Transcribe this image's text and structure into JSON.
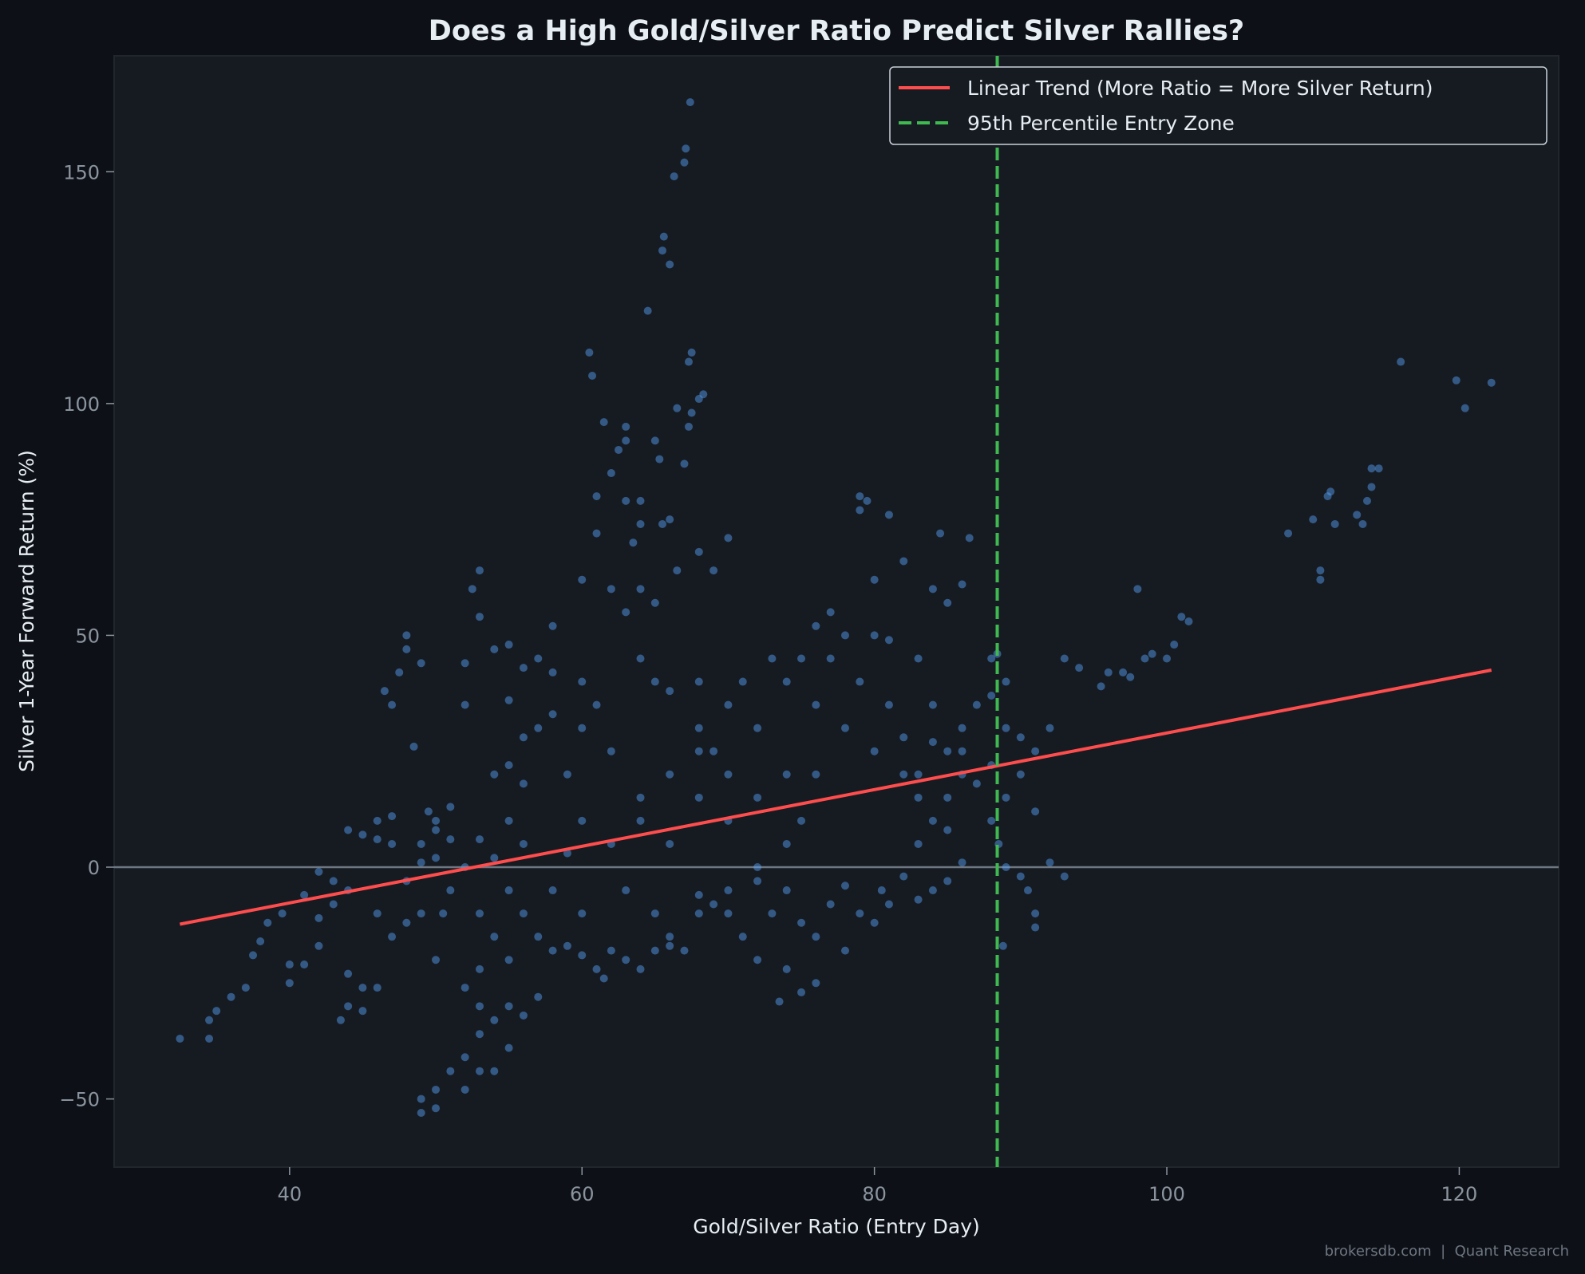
{
  "chart_data": {
    "type": "scatter",
    "title": "Does a High Gold/Silver Ratio Predict Silver Rallies?",
    "xlabel": "Gold/Silver Ratio (Entry Day)",
    "ylabel": "Silver 1-Year Forward Return (%)",
    "xlim": [
      28,
      126.8
    ],
    "ylim": [
      -64.7,
      175
    ],
    "xticks": [
      40,
      60,
      80,
      100,
      120
    ],
    "yticks": [
      -50,
      0,
      50,
      100,
      150
    ],
    "ytick_labels": [
      "−50",
      "0",
      "50",
      "100",
      "150"
    ],
    "grid": false,
    "legend_position": "top-right",
    "colors": {
      "background": "#0d1117",
      "axes": "#161b22",
      "points": "#58a6ff",
      "trend": "#ff4d4d",
      "threshold": "#3fb950",
      "zero_line": "#6e7681"
    },
    "trend_line": {
      "name": "Linear Trend (More Ratio = More Silver Return)",
      "x": [
        32.5,
        122.2
      ],
      "y": [
        -12.3,
        42.5
      ]
    },
    "threshold_line": {
      "name": "95th Percentile Entry Zone",
      "x": 88.4
    },
    "zero_line": 0,
    "points": [
      [
        32.5,
        -37
      ],
      [
        34.5,
        -37
      ],
      [
        34.5,
        -33
      ],
      [
        35,
        -31
      ],
      [
        36,
        -28
      ],
      [
        37,
        -26
      ],
      [
        37.5,
        -19
      ],
      [
        38,
        -16
      ],
      [
        38.5,
        -12
      ],
      [
        39.5,
        -10
      ],
      [
        40,
        -25
      ],
      [
        40,
        -21
      ],
      [
        41,
        -21
      ],
      [
        42,
        -17
      ],
      [
        42,
        -1
      ],
      [
        43,
        -3
      ],
      [
        43,
        -8
      ],
      [
        44,
        -5
      ],
      [
        44,
        -23
      ],
      [
        44,
        -30
      ],
      [
        43.5,
        -33
      ],
      [
        45,
        -31
      ],
      [
        45,
        -26
      ],
      [
        46,
        -26
      ],
      [
        46,
        -10
      ],
      [
        47,
        -15
      ],
      [
        45,
        7
      ],
      [
        46,
        10
      ],
      [
        47,
        11
      ],
      [
        48,
        -12
      ],
      [
        47,
        35
      ],
      [
        47.5,
        42
      ],
      [
        48,
        47
      ],
      [
        48,
        50
      ],
      [
        46.5,
        38
      ],
      [
        48.5,
        26
      ],
      [
        49,
        44
      ],
      [
        49,
        5
      ],
      [
        49,
        1
      ],
      [
        49.5,
        12
      ],
      [
        50,
        8
      ],
      [
        50,
        10
      ],
      [
        51,
        6
      ],
      [
        51,
        13
      ],
      [
        50.5,
        -10
      ],
      [
        49,
        -50
      ],
      [
        49,
        -53
      ],
      [
        50,
        -48
      ],
      [
        50,
        -52
      ],
      [
        51,
        -44
      ],
      [
        50,
        -20
      ],
      [
        52,
        -41
      ],
      [
        52,
        -48
      ],
      [
        53,
        -44
      ],
      [
        53,
        -36
      ],
      [
        53,
        -30
      ],
      [
        52,
        -26
      ],
      [
        53,
        -22
      ],
      [
        54,
        -44
      ],
      [
        54,
        -33
      ],
      [
        55,
        -39
      ],
      [
        55,
        -30
      ],
      [
        56,
        -32
      ],
      [
        57,
        -28
      ],
      [
        52,
        35
      ],
      [
        52,
        44
      ],
      [
        52.5,
        60
      ],
      [
        53,
        54
      ],
      [
        53,
        64
      ],
      [
        54,
        47
      ],
      [
        55,
        48
      ],
      [
        56,
        43
      ],
      [
        57,
        45
      ],
      [
        58,
        52
      ],
      [
        55,
        36
      ],
      [
        56,
        28
      ],
      [
        54,
        20
      ],
      [
        55,
        22
      ],
      [
        56,
        18
      ],
      [
        55,
        10
      ],
      [
        53,
        6
      ],
      [
        54,
        2
      ],
      [
        55,
        -5
      ],
      [
        56,
        -10
      ],
      [
        57,
        -15
      ],
      [
        58,
        -18
      ],
      [
        59,
        -17
      ],
      [
        60,
        -19
      ],
      [
        61,
        -22
      ],
      [
        61.5,
        -24
      ],
      [
        60,
        -10
      ],
      [
        58,
        -5
      ],
      [
        59,
        3
      ],
      [
        60,
        10
      ],
      [
        59,
        20
      ],
      [
        58,
        33
      ],
      [
        60,
        30
      ],
      [
        61,
        35
      ],
      [
        60,
        62
      ],
      [
        61,
        72
      ],
      [
        61,
        80
      ],
      [
        60.5,
        111
      ],
      [
        60.7,
        106
      ],
      [
        61.5,
        96
      ],
      [
        62,
        85
      ],
      [
        62.5,
        90
      ],
      [
        63,
        79
      ],
      [
        63.5,
        70
      ],
      [
        64,
        74
      ],
      [
        64,
        79
      ],
      [
        63,
        95
      ],
      [
        63,
        92
      ],
      [
        64.5,
        120
      ],
      [
        65,
        92
      ],
      [
        65.3,
        88
      ],
      [
        65.5,
        133
      ],
      [
        65.6,
        136
      ],
      [
        66,
        130
      ],
      [
        66.3,
        149
      ],
      [
        67,
        152
      ],
      [
        67.1,
        155
      ],
      [
        67.4,
        165
      ],
      [
        67.3,
        109
      ],
      [
        67.5,
        111
      ],
      [
        67.3,
        95
      ],
      [
        67.5,
        98
      ],
      [
        66.5,
        99
      ],
      [
        68,
        101
      ],
      [
        68.3,
        102
      ],
      [
        67,
        87
      ],
      [
        66,
        75
      ],
      [
        65.5,
        74
      ],
      [
        66.5,
        64
      ],
      [
        68,
        68
      ],
      [
        69,
        64
      ],
      [
        70,
        71
      ],
      [
        65,
        57
      ],
      [
        64,
        60
      ],
      [
        63,
        55
      ],
      [
        62,
        60
      ],
      [
        64,
        45
      ],
      [
        65,
        40
      ],
      [
        66,
        38
      ],
      [
        68,
        40
      ],
      [
        68,
        30
      ],
      [
        70,
        35
      ],
      [
        69,
        25
      ],
      [
        71,
        40
      ],
      [
        72,
        30
      ],
      [
        73,
        45
      ],
      [
        74,
        40
      ],
      [
        75,
        45
      ],
      [
        76,
        52
      ],
      [
        77,
        55
      ],
      [
        78,
        50
      ],
      [
        77,
        45
      ],
      [
        76,
        35
      ],
      [
        74,
        20
      ],
      [
        72,
        15
      ],
      [
        70,
        10
      ],
      [
        68,
        15
      ],
      [
        66,
        20
      ],
      [
        64,
        10
      ],
      [
        62,
        5
      ],
      [
        63,
        -5
      ],
      [
        65,
        -10
      ],
      [
        66,
        -15
      ],
      [
        67,
        -18
      ],
      [
        68,
        -10
      ],
      [
        69,
        -8
      ],
      [
        70,
        -5
      ],
      [
        71,
        -15
      ],
      [
        72,
        -20
      ],
      [
        73,
        -10
      ],
      [
        74,
        -5
      ],
      [
        75,
        -12
      ],
      [
        76,
        -15
      ],
      [
        77,
        -8
      ],
      [
        78,
        -4
      ],
      [
        79,
        -10
      ],
      [
        80,
        -12
      ],
      [
        80.5,
        -5
      ],
      [
        81,
        -8
      ],
      [
        78,
        -18
      ],
      [
        76,
        -25
      ],
      [
        75,
        -27
      ],
      [
        73.5,
        -29
      ],
      [
        74,
        -22
      ],
      [
        72,
        -3
      ],
      [
        70,
        -10
      ],
      [
        68,
        -6
      ],
      [
        66,
        -17
      ],
      [
        65,
        -18
      ],
      [
        64,
        -22
      ],
      [
        63,
        -20
      ],
      [
        62,
        -18
      ],
      [
        79,
        80
      ],
      [
        79.5,
        79
      ],
      [
        79,
        77
      ],
      [
        81,
        76
      ],
      [
        82,
        66
      ],
      [
        80,
        62
      ],
      [
        79,
        40
      ],
      [
        80,
        50
      ],
      [
        81,
        49
      ],
      [
        80,
        25
      ],
      [
        82,
        20
      ],
      [
        83,
        15
      ],
      [
        84,
        10
      ],
      [
        85,
        8
      ],
      [
        83,
        5
      ],
      [
        82,
        -2
      ],
      [
        83,
        -7
      ],
      [
        84,
        -5
      ],
      [
        85,
        -3
      ],
      [
        86,
        1
      ],
      [
        85,
        15
      ],
      [
        86,
        20
      ],
      [
        85,
        25
      ],
      [
        86,
        30
      ],
      [
        87,
        35
      ],
      [
        84,
        35
      ],
      [
        83,
        45
      ],
      [
        84,
        60
      ],
      [
        85,
        57
      ],
      [
        86,
        61
      ],
      [
        84.5,
        72
      ],
      [
        86.5,
        71
      ],
      [
        88,
        45
      ],
      [
        88.4,
        46
      ],
      [
        89,
        40
      ],
      [
        88,
        37
      ],
      [
        89,
        30
      ],
      [
        90,
        28
      ],
      [
        91,
        25
      ],
      [
        90,
        20
      ],
      [
        89,
        15
      ],
      [
        88,
        10
      ],
      [
        88.5,
        5
      ],
      [
        88.8,
        -17
      ],
      [
        89,
        0
      ],
      [
        90,
        -2
      ],
      [
        90.5,
        -5
      ],
      [
        91,
        -10
      ],
      [
        91,
        -13
      ],
      [
        92,
        1
      ],
      [
        93,
        -2
      ],
      [
        91,
        12
      ],
      [
        92,
        30
      ],
      [
        93,
        45
      ],
      [
        94,
        43
      ],
      [
        95.5,
        39
      ],
      [
        96,
        42
      ],
      [
        97,
        42
      ],
      [
        97.5,
        41
      ],
      [
        98,
        60
      ],
      [
        98.5,
        45
      ],
      [
        99,
        46
      ],
      [
        100,
        45
      ],
      [
        100.5,
        48
      ],
      [
        101,
        54
      ],
      [
        101.5,
        53
      ],
      [
        108.3,
        72
      ],
      [
        110,
        75
      ],
      [
        110.5,
        64
      ],
      [
        110.5,
        62
      ],
      [
        111,
        80
      ],
      [
        111.2,
        81
      ],
      [
        111.5,
        74
      ],
      [
        113,
        76
      ],
      [
        113.4,
        74
      ],
      [
        113.7,
        79
      ],
      [
        114,
        82
      ],
      [
        114,
        86
      ],
      [
        114.5,
        86
      ],
      [
        116,
        109
      ],
      [
        119.8,
        105
      ],
      [
        120.4,
        99
      ],
      [
        122.2,
        104.5
      ],
      [
        88,
        22
      ],
      [
        87,
        18
      ],
      [
        86,
        25
      ],
      [
        84,
        27
      ],
      [
        83,
        20
      ],
      [
        82,
        28
      ],
      [
        81,
        35
      ],
      [
        78,
        30
      ],
      [
        76,
        20
      ],
      [
        75,
        10
      ],
      [
        74,
        5
      ],
      [
        72,
        0
      ],
      [
        70,
        20
      ],
      [
        68,
        25
      ],
      [
        66,
        5
      ],
      [
        64,
        15
      ],
      [
        62,
        25
      ],
      [
        60,
        40
      ],
      [
        58,
        42
      ],
      [
        57,
        30
      ],
      [
        56,
        5
      ],
      [
        55,
        -20
      ],
      [
        54,
        -15
      ],
      [
        53,
        -10
      ],
      [
        52,
        0
      ],
      [
        51,
        -5
      ],
      [
        50,
        2
      ],
      [
        49,
        -10
      ],
      [
        48,
        -3
      ],
      [
        47,
        5
      ],
      [
        46,
        6
      ],
      [
        44,
        8
      ],
      [
        42,
        -11
      ],
      [
        41,
        -6
      ]
    ]
  },
  "watermark": "brokersdb.com  |  Quant Research"
}
